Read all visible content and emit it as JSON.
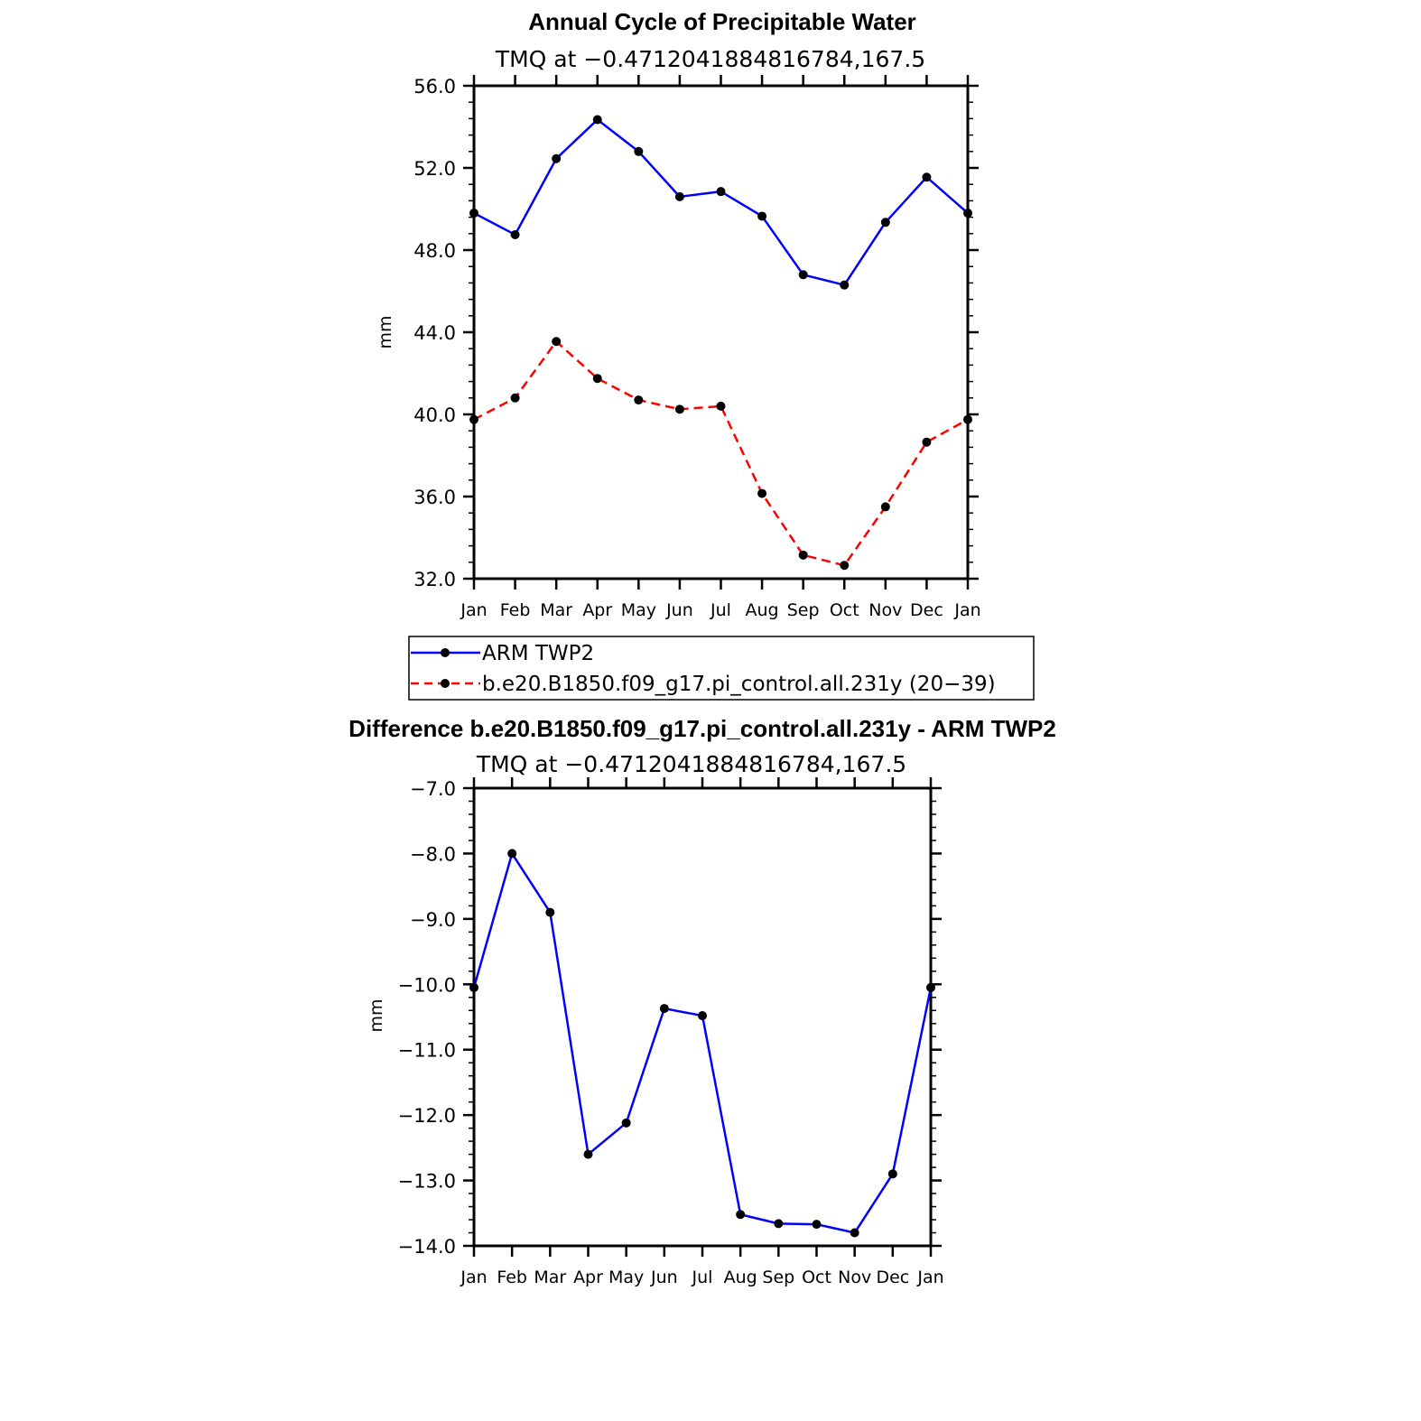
{
  "chart_data": [
    {
      "type": "line",
      "title": "Annual Cycle of Precipitable Water",
      "subtitle": "TMQ at −0.4712041884816784,167.5",
      "ylabel": "mm",
      "xlabel": "",
      "categories": [
        "Jan",
        "Feb",
        "Mar",
        "Apr",
        "May",
        "Jun",
        "Jul",
        "Aug",
        "Sep",
        "Oct",
        "Nov",
        "Dec",
        "Jan"
      ],
      "ylim": [
        32.0,
        56.0
      ],
      "yticks": [
        "32.0",
        "36.0",
        "40.0",
        "44.0",
        "48.0",
        "52.0",
        "56.0"
      ],
      "series": [
        {
          "name": "ARM TWP2",
          "color": "#0000ff",
          "dash": "solid",
          "values": [
            49.8,
            48.75,
            52.45,
            54.35,
            52.8,
            50.6,
            50.85,
            49.65,
            46.8,
            46.3,
            49.35,
            51.55,
            49.8
          ]
        },
        {
          "name": "b.e20.B1850.f09_g17.pi_control.all.231y (20−39)",
          "color": "#ff0000",
          "dash": "dashed",
          "values": [
            39.75,
            40.8,
            43.55,
            41.75,
            40.7,
            40.25,
            40.4,
            36.15,
            33.15,
            32.65,
            35.5,
            38.65,
            39.75
          ]
        }
      ]
    },
    {
      "type": "line",
      "title": "Difference b.e20.B1850.f09_g17.pi_control.all.231y - ARM TWP2",
      "subtitle": "TMQ at −0.4712041884816784,167.5",
      "ylabel": "mm",
      "xlabel": "",
      "categories": [
        "Jan",
        "Feb",
        "Mar",
        "Apr",
        "May",
        "Jun",
        "Jul",
        "Aug",
        "Sep",
        "Oct",
        "Nov",
        "Dec",
        "Jan"
      ],
      "ylim": [
        -14.0,
        -7.0
      ],
      "yticks": [
        "−14.0",
        "−13.0",
        "−12.0",
        "−11.0",
        "−10.0",
        "−9.0",
        "−8.0",
        "−7.0"
      ],
      "series": [
        {
          "color": "#0000ff",
          "dash": "solid",
          "values": [
            -10.05,
            -8.0,
            -8.9,
            -12.6,
            -12.12,
            -10.37,
            -10.48,
            -13.52,
            -13.66,
            -13.67,
            -13.8,
            -12.9,
            -10.05
          ]
        }
      ]
    }
  ]
}
